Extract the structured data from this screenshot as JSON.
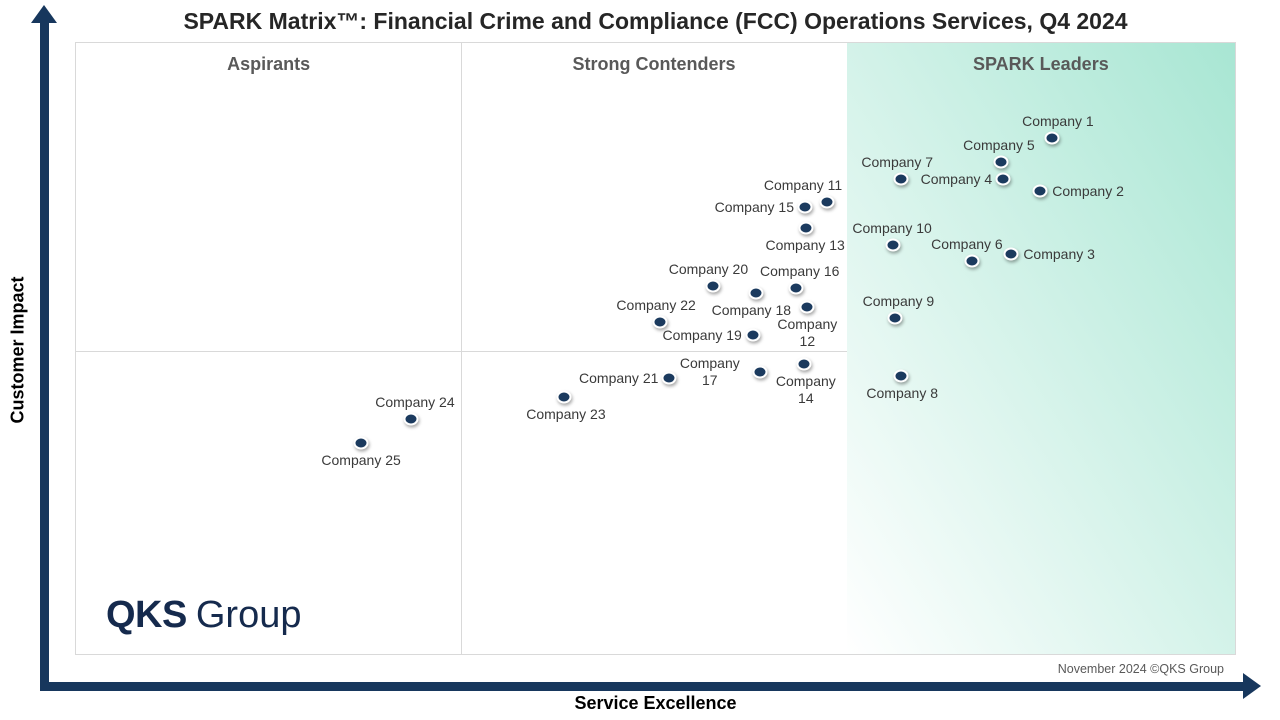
{
  "title": "SPARK Matrix™: Financial Crime and Compliance (FCC) Operations Services, Q4 2024",
  "quadrants": {
    "aspirants": "Aspirants",
    "strong_contenders": "Strong Contenders",
    "spark_leaders": "SPARK Leaders"
  },
  "axes": {
    "x_label": "Service Excellence",
    "y_label": "Customer Impact"
  },
  "footnote": "November 2024 ©QKS Group",
  "logo": {
    "bold": "QKS",
    "regular": "Group"
  },
  "colors": {
    "dot": "#1b3a5e",
    "axis": "#17375d",
    "quadrant_label": "#595959",
    "leaders_gradient": "#a8e6d3",
    "divider": "#d9d9d9",
    "title": "#262626",
    "footnote": "#595959",
    "logo": "#152a4d",
    "point_label": "#3a3a3a"
  },
  "chart_data": {
    "type": "scatter",
    "title": "SPARK Matrix™: Financial Crime and Compliance (FCC) Operations Services, Q4 2024",
    "xlabel": "Service Excellence",
    "ylabel": "Customer Impact",
    "x_range": [
      0,
      100
    ],
    "y_range": [
      0,
      100
    ],
    "grid": false,
    "legend": false,
    "quadrant_boundaries": {
      "x_dividers_pct": [
        33.25,
        66.5
      ],
      "y_divider_pct": 49.6
    },
    "quadrant_names": [
      "Aspirants",
      "Strong Contenders",
      "SPARK Leaders"
    ],
    "points": [
      {
        "name": "Company 1",
        "x": 84.2,
        "y": 84.5,
        "label": "above",
        "dx": 6
      },
      {
        "name": "Company 2",
        "x": 83.2,
        "y": 75.7,
        "label": "right"
      },
      {
        "name": "Company 3",
        "x": 80.7,
        "y": 65.4,
        "label": "right"
      },
      {
        "name": "Company 4",
        "x": 80.0,
        "y": 77.7,
        "label": "left"
      },
      {
        "name": "Company 5",
        "x": 79.8,
        "y": 80.6,
        "label": "above",
        "dx": -2
      },
      {
        "name": "Company 6",
        "x": 77.3,
        "y": 64.4,
        "label": "above",
        "dx": -5
      },
      {
        "name": "Company 7",
        "x": 71.2,
        "y": 77.7,
        "label": "above",
        "dx": -4
      },
      {
        "name": "Company 8",
        "x": 71.2,
        "y": 45.5,
        "label": "below",
        "dx": 1
      },
      {
        "name": "Company 9",
        "x": 70.7,
        "y": 55.0,
        "label": "above",
        "dx": 3
      },
      {
        "name": "Company 10",
        "x": 70.5,
        "y": 66.9,
        "label": "above",
        "dx": -1
      },
      {
        "name": "Company 11",
        "x": 64.8,
        "y": 73.9,
        "label": "above",
        "dx": -24
      },
      {
        "name": "Company 12",
        "x": 63.1,
        "y": 56.8,
        "label": "below",
        "wrap": true
      },
      {
        "name": "Company 13",
        "x": 63.0,
        "y": 69.7,
        "label": "below",
        "dx": -1
      },
      {
        "name": "Company 14",
        "x": 62.8,
        "y": 47.5,
        "label": "below",
        "dx": 2,
        "wrap": true
      },
      {
        "name": "Company 15",
        "x": 62.9,
        "y": 73.1,
        "label": "left"
      },
      {
        "name": "Company 16",
        "x": 62.1,
        "y": 59.9,
        "label": "above",
        "dx": 4
      },
      {
        "name": "Company 17",
        "x": 59.0,
        "y": 46.2,
        "label": "left",
        "wrap": true
      },
      {
        "name": "Company 18",
        "x": 58.7,
        "y": 59.1,
        "label": "below",
        "dx": -5
      },
      {
        "name": "Company 19",
        "x": 58.4,
        "y": 52.2,
        "label": "left"
      },
      {
        "name": "Company 20",
        "x": 55.0,
        "y": 60.2,
        "label": "above",
        "dx": -5
      },
      {
        "name": "Company 21",
        "x": 51.2,
        "y": 45.2,
        "label": "left"
      },
      {
        "name": "Company 22",
        "x": 50.4,
        "y": 54.3,
        "label": "above",
        "dx": -4
      },
      {
        "name": "Company 23",
        "x": 42.1,
        "y": 42.1,
        "label": "below",
        "dx": 2
      },
      {
        "name": "Company 24",
        "x": 28.9,
        "y": 38.5,
        "label": "above",
        "dx": 4
      },
      {
        "name": "Company 25",
        "x": 24.6,
        "y": 34.6,
        "label": "below"
      }
    ]
  }
}
